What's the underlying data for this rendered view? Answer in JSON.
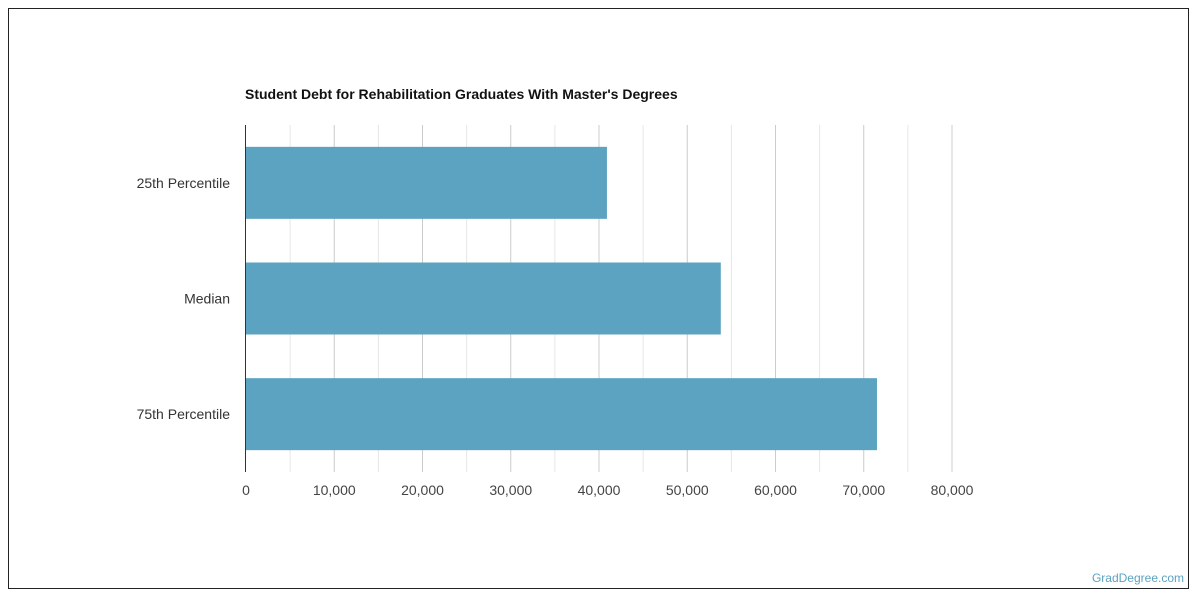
{
  "chart_data": {
    "type": "bar",
    "orientation": "horizontal",
    "title": "Student Debt for Rehabilitation Graduates With Master's Degrees",
    "categories": [
      "25th Percentile",
      "Median",
      "75th Percentile"
    ],
    "values": [
      40900,
      53800,
      71500
    ],
    "xlim": [
      0,
      80000
    ],
    "xticks": [
      0,
      10000,
      20000,
      30000,
      40000,
      50000,
      60000,
      70000,
      80000
    ],
    "xtick_labels": [
      "0",
      "10,000",
      "20,000",
      "30,000",
      "40,000",
      "50,000",
      "60,000",
      "70,000",
      "80,000"
    ],
    "bar_color": "#5ba3c0",
    "grid": true,
    "xlabel": "",
    "ylabel": ""
  },
  "watermark": "GradDegree.com"
}
